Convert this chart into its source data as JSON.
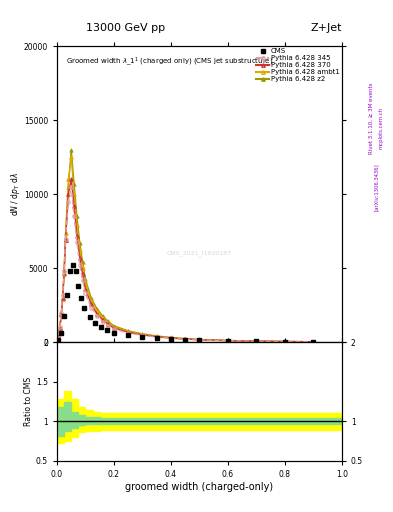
{
  "title_top": "13000 GeV pp",
  "title_right": "Z+Jet",
  "watermark": "CMS_2021_I1920187",
  "xlabel": "groomed width (charged-only)",
  "ylabel_ratio": "Ratio to CMS",
  "rivet_label": "Rivet 3.1.10, ≥ 3M events",
  "arxiv_label": "[arXiv:1306.3436]",
  "mcplots_label": "mcplots.cern.ch",
  "xlim": [
    0,
    1
  ],
  "ylim_main": [
    0,
    20000
  ],
  "ylim_ratio": [
    0.5,
    2.0
  ],
  "cms_x": [
    0.005,
    0.015,
    0.025,
    0.035,
    0.045,
    0.055,
    0.065,
    0.075,
    0.085,
    0.095,
    0.115,
    0.135,
    0.155,
    0.175,
    0.2,
    0.25,
    0.3,
    0.35,
    0.4,
    0.45,
    0.5,
    0.6,
    0.7,
    0.8,
    0.9
  ],
  "cms_y": [
    150,
    600,
    1800,
    3200,
    4800,
    5200,
    4800,
    3800,
    3000,
    2300,
    1700,
    1300,
    1000,
    820,
    640,
    460,
    350,
    260,
    200,
    155,
    125,
    88,
    62,
    44,
    28
  ],
  "p345_x": [
    0.005,
    0.01,
    0.015,
    0.02,
    0.025,
    0.03,
    0.04,
    0.05,
    0.06,
    0.07,
    0.08,
    0.09,
    0.1,
    0.12,
    0.14,
    0.16,
    0.18,
    0.2,
    0.25,
    0.3,
    0.35,
    0.4,
    0.45,
    0.5,
    0.6,
    0.7,
    0.8,
    0.9
  ],
  "p345_y": [
    500,
    1000,
    2000,
    3200,
    4800,
    7000,
    9500,
    10500,
    8500,
    6800,
    5200,
    4200,
    3300,
    2350,
    1780,
    1400,
    1120,
    890,
    630,
    465,
    355,
    270,
    208,
    160,
    105,
    72,
    50,
    32
  ],
  "p370_x": [
    0.005,
    0.01,
    0.015,
    0.02,
    0.025,
    0.03,
    0.04,
    0.05,
    0.06,
    0.07,
    0.08,
    0.09,
    0.1,
    0.12,
    0.14,
    0.16,
    0.18,
    0.2,
    0.25,
    0.3,
    0.35,
    0.4,
    0.45,
    0.5,
    0.6,
    0.7,
    0.8,
    0.9
  ],
  "p370_y": [
    480,
    950,
    1900,
    3000,
    4700,
    6900,
    10000,
    11000,
    9200,
    7200,
    5700,
    4600,
    3600,
    2560,
    1940,
    1520,
    1210,
    960,
    675,
    498,
    378,
    288,
    220,
    170,
    112,
    76,
    52,
    36
  ],
  "pambt1_x": [
    0.005,
    0.01,
    0.015,
    0.02,
    0.025,
    0.03,
    0.04,
    0.05,
    0.06,
    0.07,
    0.08,
    0.09,
    0.1,
    0.12,
    0.14,
    0.16,
    0.18,
    0.2,
    0.25,
    0.3,
    0.35,
    0.4,
    0.45,
    0.5,
    0.6,
    0.7,
    0.8,
    0.9
  ],
  "pambt1_y": [
    480,
    950,
    1900,
    3000,
    4900,
    7400,
    11000,
    12500,
    10000,
    7900,
    6200,
    5000,
    3950,
    2800,
    2120,
    1660,
    1320,
    1040,
    730,
    538,
    407,
    308,
    236,
    182,
    120,
    81,
    56,
    38
  ],
  "pz2_x": [
    0.005,
    0.01,
    0.015,
    0.02,
    0.025,
    0.03,
    0.04,
    0.05,
    0.06,
    0.07,
    0.08,
    0.09,
    0.1,
    0.12,
    0.14,
    0.16,
    0.18,
    0.2,
    0.25,
    0.3,
    0.35,
    0.4,
    0.45,
    0.5,
    0.6,
    0.7,
    0.8,
    0.9
  ],
  "pz2_y": [
    470,
    920,
    1840,
    2900,
    4600,
    6900,
    10500,
    13000,
    10700,
    8500,
    6700,
    5400,
    4250,
    3000,
    2270,
    1780,
    1410,
    1110,
    775,
    570,
    430,
    325,
    250,
    190,
    125,
    85,
    58,
    40
  ],
  "color_345": "#e0a0a0",
  "color_370": "#cc3333",
  "color_ambt1": "#ddaa00",
  "color_z2": "#999900",
  "ratio_green_x": [
    0.0,
    0.025,
    0.05,
    0.075,
    0.1,
    0.125,
    0.15,
    0.175,
    0.2,
    0.25,
    0.3,
    0.35,
    0.4,
    0.45,
    0.5,
    0.55,
    0.6,
    0.65,
    0.7,
    0.75,
    0.8,
    0.85,
    0.9,
    0.95,
    1.0
  ],
  "ratio_green_low": [
    0.82,
    0.88,
    0.92,
    0.95,
    0.96,
    0.96,
    0.97,
    0.97,
    0.97,
    0.97,
    0.97,
    0.97,
    0.97,
    0.97,
    0.97,
    0.97,
    0.97,
    0.97,
    0.97,
    0.97,
    0.97,
    0.97,
    0.97,
    0.97,
    0.97
  ],
  "ratio_green_high": [
    1.18,
    1.25,
    1.12,
    1.08,
    1.06,
    1.05,
    1.04,
    1.04,
    1.04,
    1.04,
    1.04,
    1.04,
    1.04,
    1.04,
    1.04,
    1.04,
    1.04,
    1.04,
    1.04,
    1.04,
    1.04,
    1.04,
    1.04,
    1.04,
    1.04
  ],
  "ratio_yellow_x": [
    0.0,
    0.025,
    0.05,
    0.075,
    0.1,
    0.125,
    0.15,
    0.175,
    0.2,
    0.25,
    0.3,
    0.35,
    0.4,
    0.45,
    0.5,
    0.55,
    0.6,
    0.65,
    0.7,
    0.75,
    0.8,
    0.85,
    0.9,
    0.95,
    1.0
  ],
  "ratio_yellow_low": [
    0.72,
    0.75,
    0.8,
    0.86,
    0.88,
    0.88,
    0.89,
    0.89,
    0.89,
    0.89,
    0.89,
    0.89,
    0.89,
    0.89,
    0.89,
    0.89,
    0.89,
    0.89,
    0.89,
    0.89,
    0.89,
    0.89,
    0.89,
    0.89,
    0.89
  ],
  "ratio_yellow_high": [
    1.28,
    1.38,
    1.28,
    1.18,
    1.14,
    1.12,
    1.11,
    1.11,
    1.11,
    1.11,
    1.11,
    1.11,
    1.11,
    1.11,
    1.11,
    1.11,
    1.11,
    1.11,
    1.11,
    1.11,
    1.11,
    1.11,
    1.11,
    1.11,
    1.11
  ]
}
